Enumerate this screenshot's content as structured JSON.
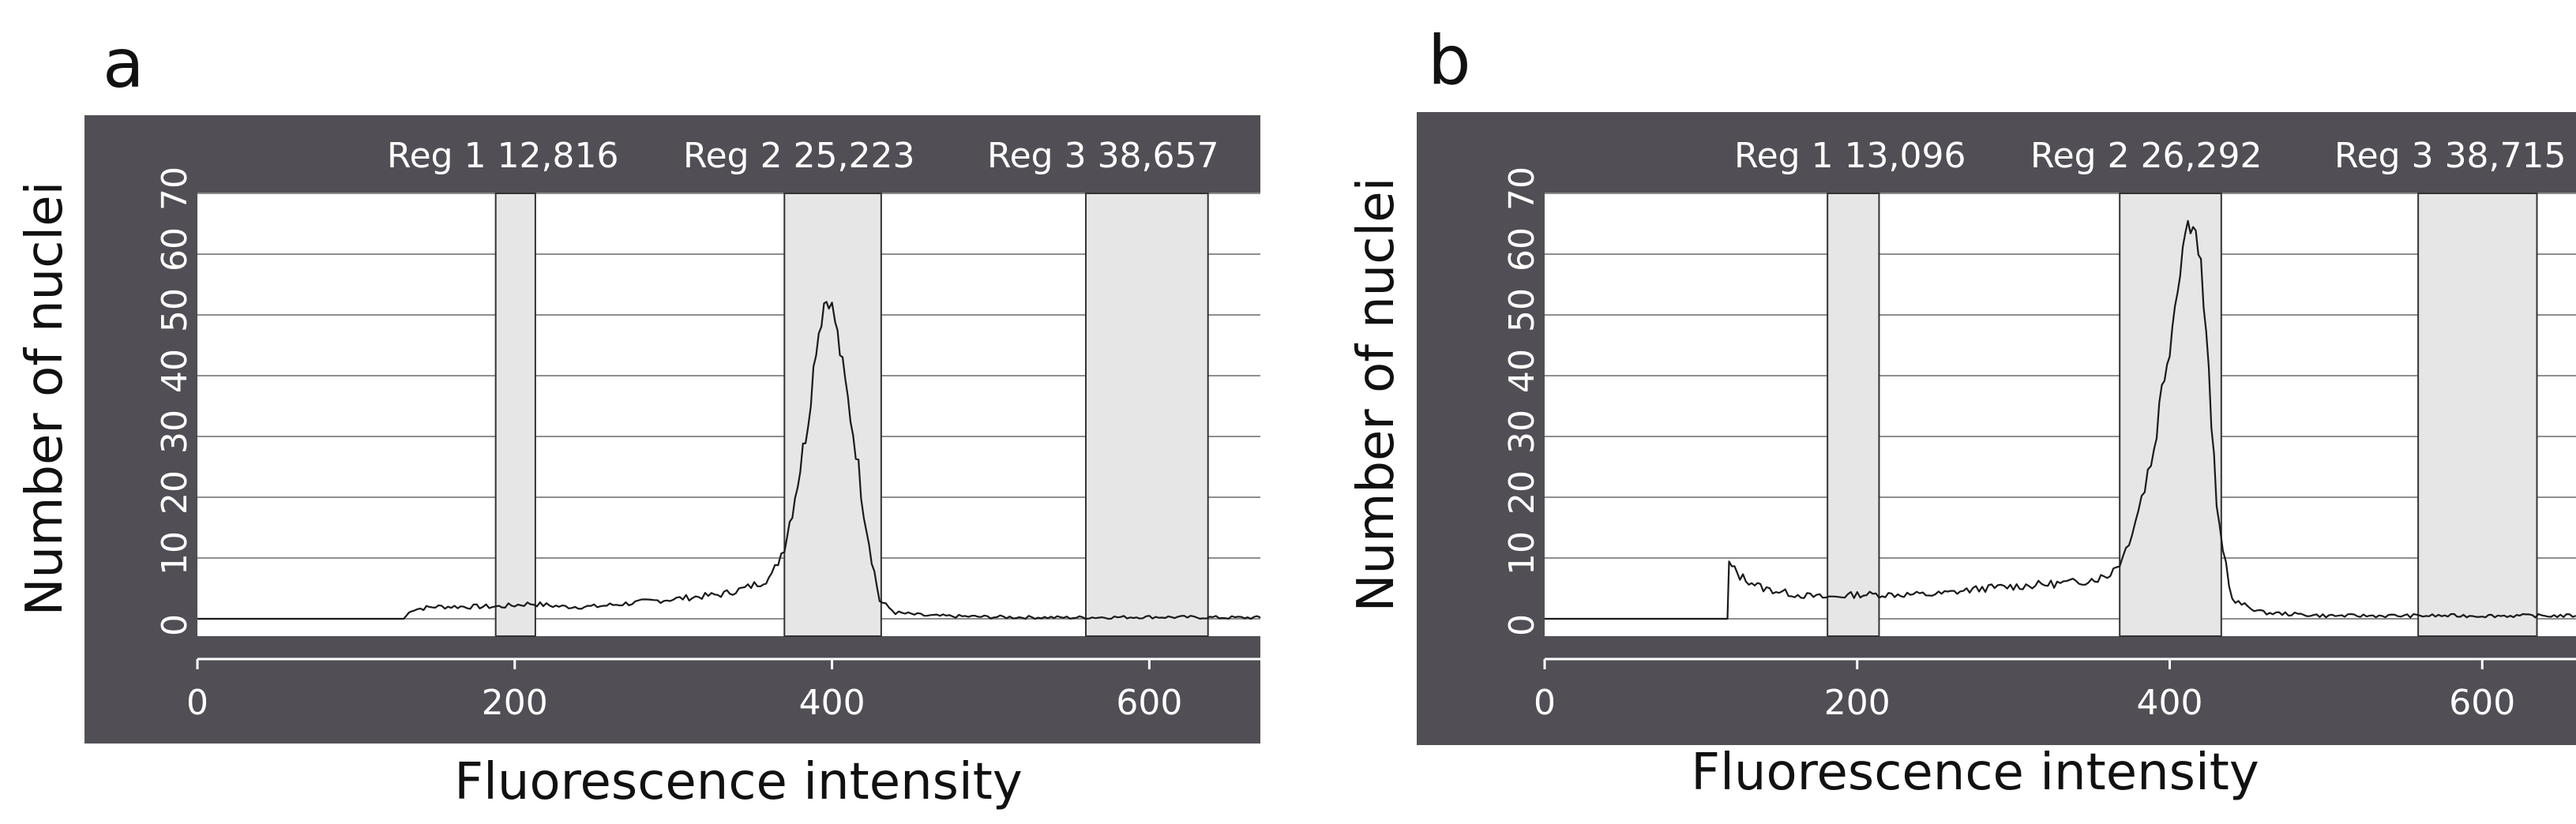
{
  "chart_data": [
    {
      "panel_label": "a",
      "type": "line",
      "xlabel": "Fluorescence intensity",
      "ylabel": "Number of nuclei",
      "xlim": [
        0,
        670
      ],
      "ylim": [
        0,
        70
      ],
      "x_ticks": [
        "0",
        "200",
        "400",
        "600"
      ],
      "y_ticks": [
        "0",
        "10",
        "20",
        "30",
        "40",
        "50",
        "60",
        "70"
      ],
      "grid": true,
      "regions": [
        {
          "name": "Reg 1",
          "value": "12,816",
          "label": "Reg 1 12,816",
          "range": [
            188,
            213
          ]
        },
        {
          "name": "Reg 2",
          "value": "25,223",
          "label": "Reg 2 25,223",
          "range": [
            370,
            431
          ]
        },
        {
          "name": "Reg 3",
          "value": "38,657",
          "label": "Reg 3 38,657",
          "range": [
            560,
            637
          ]
        }
      ],
      "series": [
        {
          "name": "histogram",
          "x": [
            0,
            50,
            100,
            130,
            135,
            150,
            170,
            190,
            210,
            230,
            250,
            270,
            290,
            310,
            330,
            345,
            355,
            362,
            370,
            375,
            380,
            385,
            390,
            395,
            398,
            402,
            405,
            410,
            415,
            420,
            425,
            430,
            440,
            460,
            500,
            550,
            600,
            650,
            670
          ],
          "values": [
            0,
            0,
            0,
            0,
            1.5,
            2,
            2,
            2,
            2.5,
            2,
            2,
            2.5,
            3,
            3.5,
            4,
            5,
            6,
            7,
            12,
            18,
            25,
            33,
            45,
            52,
            53,
            49,
            44,
            36,
            28,
            18,
            10,
            3,
            1,
            0.5,
            0.3,
            0.2,
            0.3,
            0.2,
            0.2
          ]
        }
      ]
    },
    {
      "panel_label": "b",
      "type": "line",
      "xlabel": "Fluorescence intensity",
      "ylabel": "Number of nuclei",
      "xlim": [
        0,
        660
      ],
      "ylim": [
        0,
        70
      ],
      "x_ticks": [
        "0",
        "200",
        "400",
        "600"
      ],
      "y_ticks": [
        "0",
        "10",
        "20",
        "30",
        "40",
        "50",
        "60",
        "70"
      ],
      "grid": true,
      "regions": [
        {
          "name": "Reg 1",
          "value": "13,096",
          "label": "Reg 1 13,096",
          "range": [
            181,
            214
          ]
        },
        {
          "name": "Reg 2",
          "value": "26,292",
          "label": "Reg 2 26,292",
          "range": [
            368,
            433
          ]
        },
        {
          "name": "Reg 3",
          "value": "38,715",
          "label": "Reg 3 38,715",
          "range": [
            559,
            635
          ]
        }
      ],
      "series": [
        {
          "name": "histogram",
          "x": [
            0,
            50,
            100,
            117,
            118,
            125,
            140,
            160,
            180,
            200,
            220,
            250,
            280,
            310,
            340,
            360,
            370,
            380,
            390,
            395,
            400,
            405,
            410,
            415,
            420,
            425,
            430,
            440,
            460,
            500,
            550,
            600,
            660
          ],
          "values": [
            0,
            0,
            0,
            0,
            9,
            7,
            5,
            4,
            3.5,
            4,
            4,
            4,
            5,
            5.5,
            6,
            7,
            10,
            18,
            28,
            38,
            45,
            55,
            64,
            66,
            58,
            40,
            18,
            3,
            1,
            0.5,
            0.5,
            0.5,
            0.5
          ]
        }
      ]
    }
  ]
}
